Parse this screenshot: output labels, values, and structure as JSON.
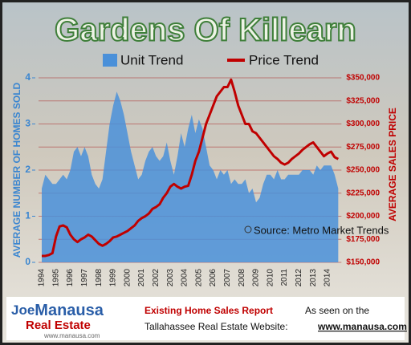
{
  "chart_data": {
    "type": "area-line",
    "title": "Gardens Of Killearn",
    "y_label": "AVERAGE NUMBER OF HOMES SOLD",
    "y2_label": "AVERAGE SALES PRICE",
    "source": "Source: Metro Market Trends",
    "categories": [
      "1994",
      null,
      null,
      null,
      "1995",
      null,
      null,
      null,
      "1996",
      null,
      null,
      null,
      "1997",
      null,
      null,
      null,
      "1998",
      null,
      null,
      null,
      "1999",
      null,
      null,
      null,
      "2000",
      null,
      null,
      null,
      "2001",
      null,
      null,
      null,
      "2002",
      null,
      null,
      null,
      "2003",
      null,
      null,
      null,
      "2004",
      null,
      null,
      null,
      "2005",
      null,
      null,
      null,
      "2006",
      null,
      null,
      null,
      "2007",
      null,
      null,
      null,
      "2008",
      null,
      null,
      null,
      "2009",
      null,
      null,
      null,
      "2010",
      null,
      null,
      null,
      "2011",
      null,
      null,
      null,
      "2012",
      null,
      null,
      null,
      "2013",
      null,
      null,
      null,
      "2014",
      null,
      null,
      null
    ],
    "series": [
      {
        "name": "Unit Trend",
        "color": "#4a90d9",
        "kind": "area",
        "values": [
          1.6,
          1.9,
          1.8,
          1.7,
          1.7,
          1.8,
          1.9,
          1.8,
          2.0,
          2.4,
          2.5,
          2.3,
          2.5,
          2.3,
          1.9,
          1.7,
          1.6,
          1.8,
          2.4,
          3.0,
          3.4,
          3.7,
          3.5,
          3.2,
          2.8,
          2.4,
          2.1,
          1.8,
          1.9,
          2.2,
          2.4,
          2.5,
          2.3,
          2.2,
          2.3,
          2.6,
          2.2,
          1.9,
          2.3,
          2.8,
          2.5,
          2.9,
          3.2,
          2.8,
          3.1,
          2.9,
          2.5,
          2.1,
          2.0,
          1.8,
          2.0,
          1.9,
          2.0,
          1.7,
          1.8,
          1.7,
          1.7,
          1.8,
          1.5,
          1.6,
          1.3,
          1.4,
          1.7,
          1.9,
          1.9,
          1.8,
          2.0,
          1.8,
          1.8,
          1.9,
          1.9,
          1.9,
          1.9,
          2.0,
          2.0,
          2.0,
          1.9,
          2.1,
          2.0,
          2.1,
          2.1,
          2.1,
          1.9,
          1.6
        ]
      },
      {
        "name": "Price Trend",
        "color": "#c00000",
        "kind": "line",
        "axis": "y2",
        "values": [
          157000,
          157000,
          158000,
          160000,
          178000,
          189000,
          190000,
          188000,
          180000,
          175000,
          172000,
          175000,
          177000,
          180000,
          178000,
          174000,
          170000,
          168000,
          170000,
          173000,
          177000,
          178000,
          180000,
          182000,
          184000,
          187000,
          190000,
          195000,
          198000,
          200000,
          203000,
          208000,
          210000,
          213000,
          220000,
          225000,
          232000,
          235000,
          232000,
          230000,
          232000,
          233000,
          245000,
          260000,
          270000,
          285000,
          300000,
          310000,
          320000,
          330000,
          335000,
          340000,
          340000,
          348000,
          335000,
          320000,
          310000,
          300000,
          300000,
          292000,
          290000,
          285000,
          280000,
          275000,
          270000,
          265000,
          262000,
          258000,
          256000,
          258000,
          262000,
          265000,
          268000,
          272000,
          275000,
          278000,
          280000,
          275000,
          270000,
          265000,
          268000,
          270000,
          264000,
          262000
        ]
      }
    ],
    "ylim": [
      0,
      4
    ],
    "yticks": [
      0,
      1,
      2,
      3,
      4
    ],
    "y2lim": [
      150000,
      350000
    ],
    "y2ticks": [
      {
        "value": 150000,
        "label": "$150,000"
      },
      {
        "value": 175000,
        "label": "$175,000"
      },
      {
        "value": 200000,
        "label": "$200,000"
      },
      {
        "value": 225000,
        "label": "$225,000"
      },
      {
        "value": 250000,
        "label": "$250,000"
      },
      {
        "value": 275000,
        "label": "$275,000"
      },
      {
        "value": 300000,
        "label": "$300,000"
      },
      {
        "value": 325000,
        "label": "$325,000"
      },
      {
        "value": 350000,
        "label": "$350,000"
      }
    ],
    "grid": true
  },
  "footer": {
    "logo_a": "Joe",
    "logo_b": "Manausa",
    "logo_sub": "Real Estate",
    "logo_url": "www.manausa.com",
    "report": "Existing Home Sales Report",
    "seen": "As seen on the",
    "website": "Tallahassee Real Estate Website:",
    "website_url": "www.manausa.com"
  }
}
